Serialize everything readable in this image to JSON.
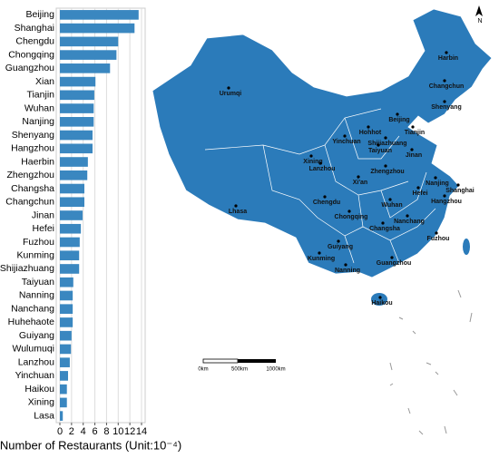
{
  "chart_data": {
    "type": "bar",
    "orientation": "horizontal",
    "categories": [
      "Beijing",
      "Shanghai",
      "Chengdu",
      "Chongqing",
      "Guangzhou",
      "Xian",
      "Tianjin",
      "Wuhan",
      "Nanjing",
      "Shenyang",
      "Hangzhou",
      "Haerbin",
      "Zhengzhou",
      "Changsha",
      "Changchun",
      "Jinan",
      "Hefei",
      "Fuzhou",
      "Kunming",
      "Shijiazhuang",
      "Taiyuan",
      "Nanning",
      "Nanchang",
      "Huhehaote",
      "Guiyang",
      "Wulumuqi",
      "Lanzhou",
      "Yinchuan",
      "Haikou",
      "Xining",
      "Lasa"
    ],
    "values": [
      13.5,
      12.8,
      10.0,
      9.7,
      8.6,
      6.1,
      5.9,
      5.8,
      5.8,
      5.6,
      5.6,
      4.8,
      4.7,
      4.2,
      4.2,
      3.9,
      3.6,
      3.4,
      3.3,
      3.3,
      2.3,
      2.2,
      2.2,
      2.2,
      2.0,
      1.9,
      1.7,
      1.4,
      1.2,
      1.2,
      0.5
    ],
    "color": "#3a87c0",
    "xlim": [
      0,
      14
    ],
    "xticks": [
      0,
      2,
      4,
      6,
      8,
      10,
      12,
      14
    ],
    "grid": true,
    "xlabel": "Number of Restaurants (Unit:10⁻⁴)"
  },
  "map": {
    "cities": [
      "Harbin",
      "Changchun",
      "Urumqi",
      "Shenyang",
      "Hohhot",
      "Beijing",
      "Tianjin",
      "Yinchuan",
      "Shijiazhuang",
      "Xining",
      "Taiyuan",
      "Jinan",
      "Lanzhou",
      "Zhengzhou",
      "Nanjing",
      "Xi'an",
      "Shanghai",
      "Hefei",
      "Hangzhou",
      "Wuhan",
      "Chengdu",
      "Chongqing",
      "Lhasa",
      "Changsha",
      "Nanchang",
      "Fuzhou",
      "Guiyang",
      "Kunming",
      "Nanning",
      "Guangzhou",
      "Haikou"
    ],
    "scale_bar_labels": [
      "0km",
      "500km",
      "1000km"
    ],
    "compass": "N"
  }
}
